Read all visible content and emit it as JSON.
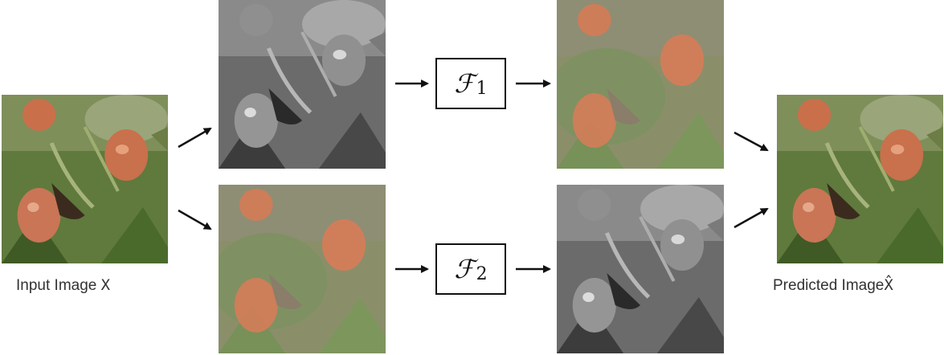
{
  "input": {
    "label": "Input Image",
    "symbol": "X"
  },
  "output": {
    "label": "Predicted Image",
    "symbol": "X̂"
  },
  "branches": [
    {
      "operator": "ℱ",
      "subscript": "1"
    },
    {
      "operator": "ℱ",
      "subscript": "2"
    }
  ],
  "colors": {
    "arrow": "#111111",
    "box_border": "#111111",
    "label": "#333333"
  }
}
